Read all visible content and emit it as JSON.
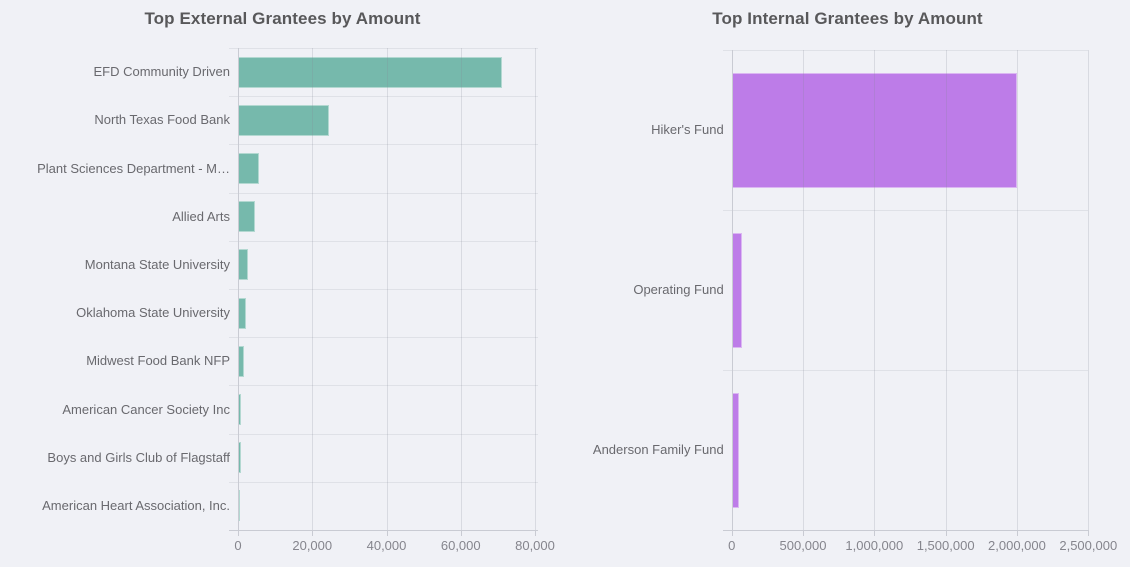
{
  "theme": {
    "background": "#f0f1f6",
    "title_color": "#58585a",
    "category_label_color": "#69696e",
    "tick_label_color": "#85858d",
    "grid_color": "#dfe1e7",
    "axis_color": "#c9cbd3",
    "teal": "#76b9ac",
    "purple": "#bd7ce8"
  },
  "chart_data": [
    {
      "type": "bar",
      "orientation": "horizontal",
      "title": "Top External Grantees by Amount",
      "categories": [
        "EFD Community Driven",
        "North Texas Food Bank",
        "Plant Sciences Department - M…",
        "Allied Arts",
        "Montana State University",
        "Oklahoma State University",
        "Midwest Food Bank NFP",
        "American Cancer Society Inc",
        "Boys and Girls Club of Flagstaff",
        "American Heart Association, Inc."
      ],
      "values": [
        71000,
        24500,
        5700,
        4600,
        2700,
        2050,
        1750,
        800,
        700,
        600
      ],
      "xlabel": "",
      "ylabel": "",
      "xlim": [
        0,
        80800
      ],
      "x_ticks": [
        {
          "value": 0,
          "label": "0"
        },
        {
          "value": 20000,
          "label": "20,000"
        },
        {
          "value": 40000,
          "label": "40,000"
        },
        {
          "value": 60000,
          "label": "60,000"
        },
        {
          "value": 80000,
          "label": "80,000"
        }
      ],
      "grid": true,
      "legend": false,
      "bar_color": "#76b9ac",
      "bar_border_color": "rgba(255,255,255,0.45)"
    },
    {
      "type": "bar",
      "orientation": "horizontal",
      "title": "Top Internal Grantees by Amount",
      "categories": [
        "Hiker's Fund",
        "Operating Fund",
        "Anderson Family Fund"
      ],
      "values": [
        2000000,
        75000,
        50000
      ],
      "xlabel": "",
      "ylabel": "",
      "xlim": [
        0,
        2500000
      ],
      "x_ticks": [
        {
          "value": 0,
          "label": "0"
        },
        {
          "value": 500000,
          "label": "500,000"
        },
        {
          "value": 1000000,
          "label": "1,000,000"
        },
        {
          "value": 1500000,
          "label": "1,500,000"
        },
        {
          "value": 2000000,
          "label": "2,000,000"
        },
        {
          "value": 2500000,
          "label": "2,500,000"
        }
      ],
      "grid": true,
      "legend": false,
      "bar_color": "#bd7ce8",
      "bar_border_color": "rgba(255,255,255,0.45)"
    }
  ]
}
